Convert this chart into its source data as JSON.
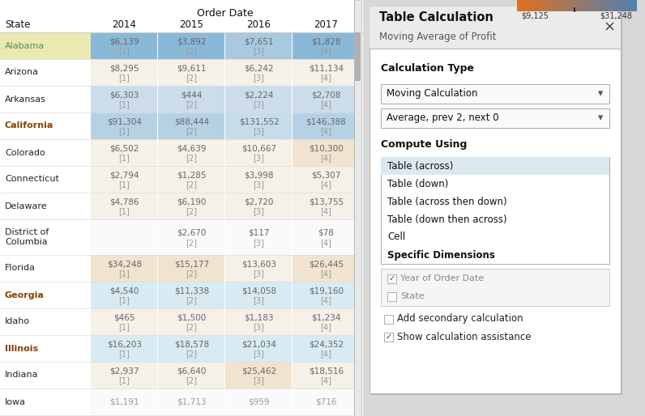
{
  "title": "Order Date",
  "col_header": "State",
  "years": [
    "2014",
    "2015",
    "2016",
    "2017"
  ],
  "states": [
    "Alabama",
    "Arizona",
    "Arkansas",
    "California",
    "Colorado",
    "Connecticut",
    "Delaware",
    "District of\nColumbia",
    "Florida",
    "Georgia",
    "Idaho",
    "Illinois",
    "Indiana",
    "Iowa"
  ],
  "values": [
    [
      "$6,139",
      "$3,892",
      "$7,651",
      "$1,828"
    ],
    [
      "$8,295",
      "$9,611",
      "$6,242",
      "$11,134"
    ],
    [
      "$6,303",
      "$444",
      "$2,224",
      "$2,708"
    ],
    [
      "$91,304",
      "$88,444",
      "$131,552",
      "$146,388"
    ],
    [
      "$6,502",
      "$4,639",
      "$10,667",
      "$10,300"
    ],
    [
      "$2,794",
      "$1,285",
      "$3,998",
      "$5,307"
    ],
    [
      "$4,786",
      "$6,190",
      "$2,720",
      "$13,755"
    ],
    [
      "",
      "$2,670",
      "$117",
      "$78"
    ],
    [
      "$34,248",
      "$15,177",
      "$13,603",
      "$26,445"
    ],
    [
      "$4,540",
      "$11,338",
      "$14,058",
      "$19,160"
    ],
    [
      "$465",
      "$1,500",
      "$1,183",
      "$1,234"
    ],
    [
      "$16,203",
      "$18,578",
      "$21,034",
      "$24,352"
    ],
    [
      "$2,937",
      "$6,640",
      "$25,462",
      "$18,516"
    ],
    [
      "$1,191",
      "$1,713",
      "$959",
      "$716"
    ]
  ],
  "brackets": [
    [
      "[1]",
      "[2]",
      "[3]",
      "[4]"
    ],
    [
      "[1]",
      "[2]",
      "[3]",
      "[4]"
    ],
    [
      "[1]",
      "[2]",
      "[3]",
      "[4]"
    ],
    [
      "[1]",
      "[2]",
      "[3]",
      "[4]"
    ],
    [
      "[1]",
      "[2]",
      "[3]",
      "[4]"
    ],
    [
      "[1]",
      "[2]",
      "[3]",
      "[4]"
    ],
    [
      "[1]",
      "[2]",
      "[3]",
      "[4]"
    ],
    [
      "",
      "[2]",
      "[3]",
      "[4]"
    ],
    [
      "[1]",
      "[2]",
      "[3]",
      "[4]"
    ],
    [
      "[1]",
      "[2]",
      "[3]",
      "[4]"
    ],
    [
      "[1]",
      "[2]",
      "[3]",
      "[4]"
    ],
    [
      "[1]",
      "[2]",
      "[3]",
      "[4]"
    ],
    [
      "[1]",
      "[2]",
      "[3]",
      "[4]"
    ],
    [
      "",
      "",
      "",
      ""
    ]
  ],
  "row_colors": [
    [
      "#8ab9d8",
      "#8ab9d8",
      "#a8c9e0",
      "#8ab9d8"
    ],
    [
      "#f5f0e8",
      "#f5f0e8",
      "#f5f0e8",
      "#f5f0e8"
    ],
    [
      "#ccdcea",
      "#ccdcea",
      "#ccdcea",
      "#ccdcea"
    ],
    [
      "#b5d2e5",
      "#b5d2e5",
      "#c5dcea",
      "#b5d2e5"
    ],
    [
      "#f5f0e8",
      "#f5f0e8",
      "#f5f0e8",
      "#f0e4d0"
    ],
    [
      "#f5f0e8",
      "#f5f0e8",
      "#f5f0e8",
      "#f5f0e8"
    ],
    [
      "#f5f0e8",
      "#f5f0e8",
      "#f5f0e8",
      "#f5f0e8"
    ],
    [
      "#fafafa",
      "#fafafa",
      "#fafafa",
      "#fafafa"
    ],
    [
      "#f0e4d0",
      "#f0e4d0",
      "#f5f0e8",
      "#f0e4d0"
    ],
    [
      "#d8eaf2",
      "#d8eaf2",
      "#d8eaf2",
      "#d8eaf2"
    ],
    [
      "#f5f0e8",
      "#f5f0e8",
      "#f5f0e8",
      "#f5f0e8"
    ],
    [
      "#d8eaf2",
      "#d8eaf2",
      "#d8eaf2",
      "#d8eaf2"
    ],
    [
      "#f5f0e8",
      "#f5f0e8",
      "#f0e4d0",
      "#f5f0e8"
    ],
    [
      "#fafafa",
      "#fafafa",
      "#fafafa",
      "#fafafa"
    ]
  ],
  "alabama_highlight": "#eaeab0",
  "bold_states": [
    "California",
    "Georgia",
    "Illinois"
  ],
  "alabama_state_color": "#5a8a5a",
  "panel_title": "Table Calculation",
  "panel_subtitle": "Moving Average of Profit",
  "calc_type_label": "Calculation Type",
  "dropdown1": "Moving Calculation",
  "dropdown2": "Average, prev 2, next 0",
  "compute_using_label": "Compute Using",
  "listbox_items": [
    "Table (across)",
    "Table (down)",
    "Table (across then down)",
    "Table (down then across)",
    "Cell",
    "Specific Dimensions"
  ],
  "dim_checks": [
    {
      "label": "Year of Order Date",
      "checked": true
    },
    {
      "label": "State",
      "checked": false
    }
  ],
  "footer_checks": [
    {
      "label": "Add secondary calculation",
      "checked": false
    },
    {
      "label": "Show calculation assistance",
      "checked": true
    }
  ],
  "colorbar_label_left": "$9,125",
  "colorbar_label_right": "$31,248",
  "bg_color": "#d8d8d8",
  "table_bg": "#ffffff",
  "value_color": "#666666",
  "bracket_color": "#999999"
}
